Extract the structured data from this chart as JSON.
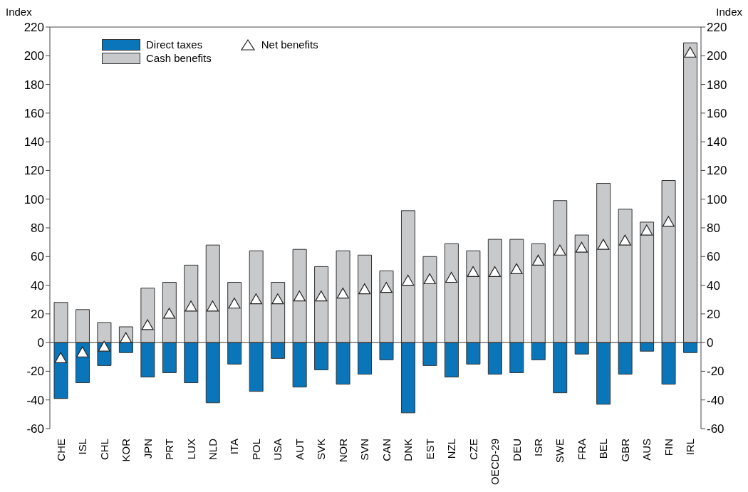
{
  "chart_data": {
    "type": "bar",
    "stacked": true,
    "ylabel": "Index",
    "y2label": "Index",
    "categories": [
      "CHE",
      "ISL",
      "CHL",
      "KOR",
      "JPN",
      "PRT",
      "LUX",
      "NLD",
      "ITA",
      "POL",
      "USA",
      "AUT",
      "SVK",
      "NOR",
      "SVN",
      "CAN",
      "DNK",
      "EST",
      "NZL",
      "CZE",
      "OECD-29",
      "DEU",
      "ISR",
      "SWE",
      "FRA",
      "BEL",
      "GBR",
      "AUS",
      "FIN",
      "IRL"
    ],
    "series": [
      {
        "name": "Direct taxes",
        "color": "#0a75b9",
        "values": [
          -39,
          -28,
          -16,
          -7,
          -24,
          -21,
          -28,
          -42,
          -15,
          -34,
          -11,
          -31,
          -19,
          -29,
          -22,
          -12,
          -49,
          -16,
          -24,
          -15,
          -22,
          -21,
          -12,
          -35,
          -8,
          -43,
          -22,
          -6,
          -29,
          -7
        ]
      },
      {
        "name": "Cash benefits",
        "color": "#c8c9cb",
        "values": [
          28,
          23,
          14,
          11,
          38,
          42,
          54,
          68,
          42,
          64,
          42,
          65,
          53,
          64,
          61,
          50,
          92,
          60,
          69,
          64,
          72,
          72,
          69,
          99,
          75,
          111,
          93,
          84,
          113,
          209
        ]
      },
      {
        "name": "Net benefits",
        "type": "scatter",
        "marker": "triangle",
        "color": "#ffffff",
        "values": [
          -11,
          -7,
          -3,
          3,
          12,
          20,
          25,
          25,
          27,
          30,
          30,
          32,
          32,
          34,
          37,
          38,
          43,
          44,
          45,
          49,
          49,
          51,
          57,
          64,
          66,
          68,
          71,
          78,
          84,
          202
        ]
      }
    ],
    "ylim": [
      -60,
      220
    ],
    "yticks": [
      -60,
      -40,
      -20,
      0,
      20,
      40,
      60,
      80,
      100,
      120,
      140,
      160,
      180,
      200,
      220
    ],
    "y2lim": [
      -60,
      220
    ],
    "y2ticks": [
      -60,
      -40,
      -20,
      0,
      20,
      40,
      60,
      80,
      100,
      120,
      140,
      160,
      180,
      200,
      220
    ],
    "legend": "top left"
  }
}
